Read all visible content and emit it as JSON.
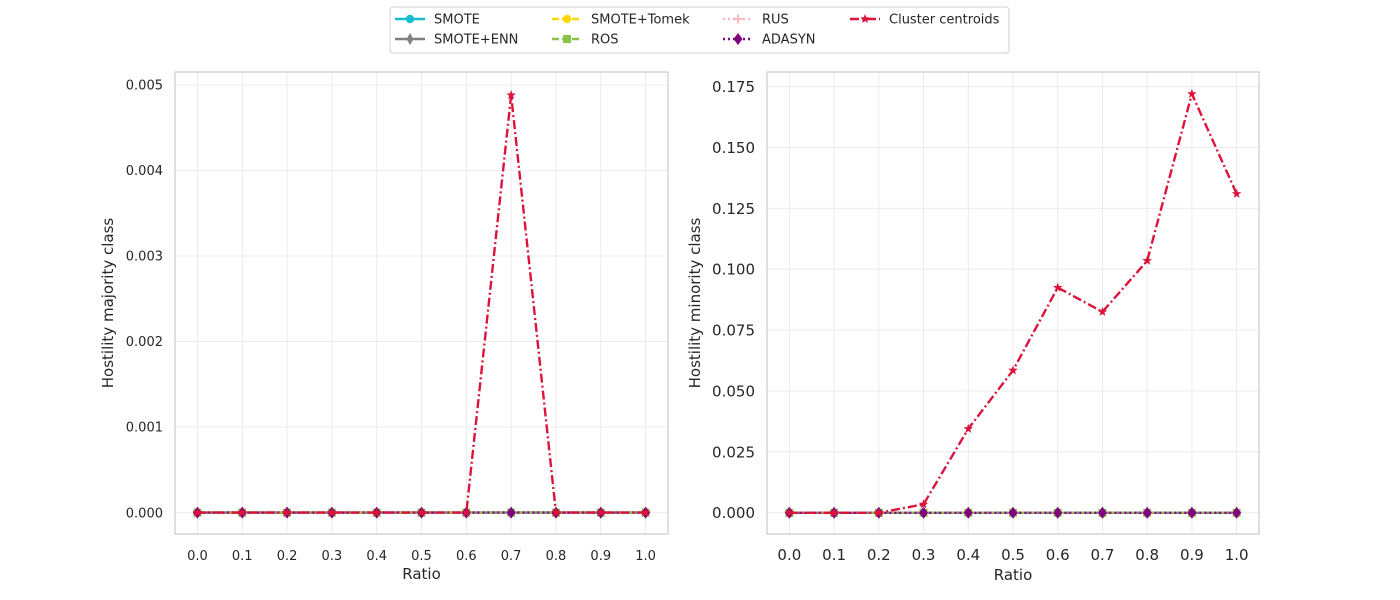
{
  "chart_data": [
    {
      "type": "line",
      "x": [
        0.0,
        0.1,
        0.2,
        0.3,
        0.4,
        0.5,
        0.6,
        0.7,
        0.8,
        0.9,
        1.0
      ],
      "xtick_labels": [
        "0.0",
        "0.1",
        "0.2",
        "0.3",
        "0.4",
        "0.5",
        "0.6",
        "0.7",
        "0.8",
        "0.9",
        "1.0"
      ],
      "xlabel": "Ratio",
      "ylabel": "Hostility majority class",
      "ylim": [
        -0.00025,
        0.00515
      ],
      "yticks": [
        0.0,
        0.001,
        0.002,
        0.003,
        0.004,
        0.005
      ],
      "ytick_labels": [
        "0.000",
        "0.001",
        "0.002",
        "0.003",
        "0.004",
        "0.005"
      ],
      "grid": true,
      "series": [
        {
          "name": "SMOTE",
          "values": [
            0,
            0,
            0,
            0,
            0,
            0,
            0,
            0,
            0,
            0,
            0
          ]
        },
        {
          "name": "SMOTE+ENN",
          "values": [
            0,
            0,
            0,
            0,
            0,
            0,
            0,
            0,
            0,
            0,
            0
          ]
        },
        {
          "name": "SMOTE+Tomek",
          "values": [
            0,
            0,
            0,
            0,
            0,
            0,
            0,
            0,
            0,
            0,
            0
          ]
        },
        {
          "name": "ROS",
          "values": [
            0,
            0,
            0,
            0,
            0,
            0,
            0,
            0,
            0,
            0,
            0
          ]
        },
        {
          "name": "RUS",
          "values": [
            0,
            0,
            0,
            0,
            0,
            0,
            0,
            0,
            0,
            0,
            0
          ]
        },
        {
          "name": "ADASYN",
          "values": [
            0,
            0,
            0,
            0,
            0,
            0,
            0,
            0,
            0,
            0,
            0
          ]
        },
        {
          "name": "Cluster centroids",
          "values": [
            0,
            0,
            0,
            0,
            0,
            0,
            0,
            0.00488,
            0,
            0,
            0
          ]
        }
      ]
    },
    {
      "type": "line",
      "x": [
        0.0,
        0.1,
        0.2,
        0.3,
        0.4,
        0.5,
        0.6,
        0.7,
        0.8,
        0.9,
        1.0
      ],
      "xtick_labels": [
        "0.0",
        "0.1",
        "0.2",
        "0.3",
        "0.4",
        "0.5",
        "0.6",
        "0.7",
        "0.8",
        "0.9",
        "1.0"
      ],
      "xlabel": "Ratio",
      "ylabel": "Hostility minority class",
      "ylim": [
        -0.0087,
        0.181
      ],
      "yticks": [
        0.0,
        0.025,
        0.05,
        0.075,
        0.1,
        0.125,
        0.15,
        0.175
      ],
      "ytick_labels": [
        "0.000",
        "0.025",
        "0.050",
        "0.075",
        "0.100",
        "0.125",
        "0.150",
        "0.175"
      ],
      "grid": true,
      "series": [
        {
          "name": "SMOTE",
          "values": [
            0,
            0,
            0,
            0,
            0,
            0,
            0,
            0,
            0,
            0,
            0
          ]
        },
        {
          "name": "SMOTE+ENN",
          "values": [
            0,
            0,
            0,
            0,
            0,
            0,
            0,
            0,
            0,
            0,
            0
          ]
        },
        {
          "name": "SMOTE+Tomek",
          "values": [
            0,
            0,
            0,
            0,
            0,
            0,
            0,
            0,
            0,
            0,
            0
          ]
        },
        {
          "name": "ROS",
          "values": [
            0,
            0,
            0,
            0,
            0,
            0,
            0,
            0,
            0,
            0,
            0
          ]
        },
        {
          "name": "RUS",
          "values": [
            0,
            0,
            0,
            0,
            0,
            0,
            0,
            0,
            0,
            0,
            0
          ]
        },
        {
          "name": "ADASYN",
          "values": [
            0,
            0,
            0,
            0,
            0,
            0,
            0,
            0,
            0,
            0,
            0
          ]
        },
        {
          "name": "Cluster centroids",
          "values": [
            0,
            0,
            0,
            0.0035,
            0.0345,
            0.0585,
            0.0925,
            0.0825,
            0.1035,
            0.172,
            0.131
          ]
        }
      ]
    }
  ],
  "legend": {
    "placement": "top-center",
    "entries": [
      {
        "name": "SMOTE",
        "color": "#17becf",
        "marker": "circle",
        "dash": "solid"
      },
      {
        "name": "SMOTE+ENN",
        "color": "#808080",
        "marker": "thin-diamond",
        "dash": "solid"
      },
      {
        "name": "SMOTE+Tomek",
        "color": "#ffd700",
        "marker": "circle",
        "dash": "dashed"
      },
      {
        "name": "ROS",
        "color": "#8bc34a",
        "marker": "square",
        "dash": "dashed"
      },
      {
        "name": "RUS",
        "color": "#ffb6c1",
        "marker": "plus",
        "dash": "dotted"
      },
      {
        "name": "ADASYN",
        "color": "#800080",
        "marker": "diamond",
        "dash": "dotted"
      },
      {
        "name": "Cluster centroids",
        "color": "#dc143c",
        "marker": "star",
        "dash": "dashdot"
      }
    ]
  }
}
